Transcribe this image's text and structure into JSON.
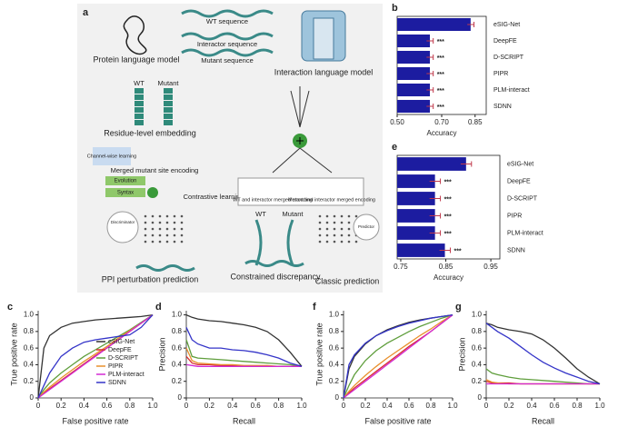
{
  "diagram": {
    "label": "a",
    "wt_sequence": "WT sequence",
    "interactor_sequence": "Interactor sequence",
    "mutant_sequence": "Mutant sequence",
    "protein_model": "Protein language model",
    "interaction_model": "Interaction language model",
    "wt": "WT",
    "mutant": "Mutant",
    "residue_embedding": "Residue-level embedding",
    "channel_learning": "Channel-wise learning",
    "merged_site": "Merged mutant site encoding",
    "evolution": "Evolution",
    "syntax": "Syntax",
    "contrastive": "Contrastive learning",
    "wt_merged": "WT and interactor merged encoding",
    "mutant_merged": "Mutant and interactor merged encoding",
    "discriminator": "Discriminator",
    "predictor": "Predictor",
    "wt_2": "WT",
    "mutant_2": "Mutant",
    "ppi_prediction": "PPI perturbation prediction",
    "constrained": "Constrained discrepancy",
    "classic": "Classic prediction"
  },
  "chart_data": [
    {
      "label": "b",
      "type": "bar",
      "orientation": "horizontal",
      "color": "#1c1ca0",
      "error_color": "#c0394b",
      "categories": [
        "eSIG-Net",
        "DeepFE",
        "D-SCRIPT",
        "PIPR",
        "PLM-interact",
        "SDNN"
      ],
      "values": [
        0.83,
        0.647,
        0.647,
        0.647,
        0.647,
        0.647
      ],
      "errors": [
        0.015,
        0.015,
        0.015,
        0.015,
        0.015,
        0.015
      ],
      "significance": [
        null,
        "***",
        "***",
        "***",
        "***",
        "***"
      ],
      "xlim": [
        0.5,
        0.9
      ],
      "xticks": [
        {
          "value": 0.5,
          "label": "0.50"
        },
        {
          "value": 0.7,
          "label": "0.70"
        },
        0.85
      ],
      "xlabel": "Accuracy"
    },
    {
      "label": "e",
      "type": "bar",
      "orientation": "horizontal",
      "color": "#1c1ca0",
      "error_color": "#c0394b",
      "categories": [
        "eSIG-Net",
        "DeepFE",
        "D-SCRIPT",
        "PIPR",
        "PLM-interact",
        "SDNN"
      ],
      "values": [
        0.895,
        0.826,
        0.826,
        0.826,
        0.826,
        0.848
      ],
      "errors": [
        0.012,
        0.012,
        0.012,
        0.012,
        0.012,
        0.012
      ],
      "significance": [
        null,
        "***",
        "***",
        "***",
        "***",
        "***"
      ],
      "xlim": [
        0.742,
        0.97
      ],
      "xticks": [
        0.75,
        0.85,
        0.95
      ],
      "xlabel": "Accuracy"
    },
    {
      "label": "c",
      "type": "line",
      "legend": "lower-right",
      "x": [
        0,
        0.05,
        0.1,
        0.2,
        0.3,
        0.4,
        0.5,
        0.6,
        0.7,
        0.8,
        0.9,
        1.0
      ],
      "series": [
        {
          "name": "eSIG-Net",
          "color": "#333333",
          "values": [
            0,
            0.6,
            0.75,
            0.85,
            0.9,
            0.92,
            0.94,
            0.95,
            0.96,
            0.97,
            0.98,
            1.0
          ]
        },
        {
          "name": "DeepFE",
          "color": "#d62f2f",
          "values": [
            0,
            0.06,
            0.11,
            0.21,
            0.31,
            0.41,
            0.51,
            0.6,
            0.7,
            0.8,
            0.9,
            1.0
          ]
        },
        {
          "name": "D-SCRIPT",
          "color": "#5f9e3c",
          "values": [
            0,
            0.1,
            0.18,
            0.3,
            0.4,
            0.5,
            0.58,
            0.66,
            0.74,
            0.82,
            0.91,
            1.0
          ]
        },
        {
          "name": "PIPR",
          "color": "#e8902c",
          "values": [
            0,
            0.07,
            0.13,
            0.24,
            0.34,
            0.44,
            0.53,
            0.62,
            0.72,
            0.81,
            0.9,
            1.0
          ]
        },
        {
          "name": "PLM-interact",
          "color": "#d22ad2",
          "values": [
            0,
            0.05,
            0.1,
            0.2,
            0.3,
            0.4,
            0.5,
            0.6,
            0.7,
            0.8,
            0.9,
            1.0
          ]
        },
        {
          "name": "SDNN",
          "color": "#3434c8",
          "values": [
            0,
            0.15,
            0.3,
            0.5,
            0.6,
            0.67,
            0.7,
            0.72,
            0.74,
            0.76,
            0.85,
            1.0
          ]
        }
      ],
      "xlim": [
        0,
        1
      ],
      "ylim": [
        0,
        1.05
      ],
      "xticks": [
        0,
        0.2,
        0.4,
        0.6,
        0.8,
        {
          "value": 1,
          "label": "1.0"
        }
      ],
      "yticks": [
        0,
        0.2,
        0.4,
        0.6,
        0.8,
        {
          "value": 1,
          "label": "1.0"
        }
      ],
      "xlabel": "False positive rate",
      "ylabel": "True positive rate"
    },
    {
      "label": "d",
      "type": "line",
      "x": [
        0,
        0.05,
        0.1,
        0.2,
        0.3,
        0.4,
        0.5,
        0.6,
        0.7,
        0.8,
        0.9,
        1.0
      ],
      "series": [
        {
          "color": "#333333",
          "values": [
            1.0,
            0.97,
            0.95,
            0.93,
            0.92,
            0.9,
            0.88,
            0.85,
            0.8,
            0.7,
            0.55,
            0.38
          ]
        },
        {
          "color": "#d62f2f",
          "values": [
            0.5,
            0.42,
            0.4,
            0.4,
            0.39,
            0.39,
            0.38,
            0.38,
            0.38,
            0.38,
            0.38,
            0.38
          ]
        },
        {
          "color": "#5f9e3c",
          "values": [
            0.7,
            0.5,
            0.48,
            0.47,
            0.46,
            0.45,
            0.44,
            0.43,
            0.42,
            0.41,
            0.4,
            0.38
          ]
        },
        {
          "color": "#e8902c",
          "values": [
            0.6,
            0.45,
            0.42,
            0.41,
            0.4,
            0.4,
            0.39,
            0.39,
            0.39,
            0.38,
            0.38,
            0.38
          ]
        },
        {
          "color": "#d22ad2",
          "values": [
            0.4,
            0.39,
            0.38,
            0.38,
            0.38,
            0.38,
            0.38,
            0.38,
            0.38,
            0.38,
            0.38,
            0.38
          ]
        },
        {
          "color": "#3434c8",
          "values": [
            0.85,
            0.7,
            0.65,
            0.6,
            0.6,
            0.58,
            0.57,
            0.55,
            0.52,
            0.48,
            0.42,
            0.38
          ]
        }
      ],
      "xlim": [
        0,
        1
      ],
      "ylim": [
        0,
        1.05
      ],
      "xticks": [
        0,
        0.2,
        0.4,
        0.6,
        0.8,
        {
          "value": 1,
          "label": "1.0"
        }
      ],
      "yticks": [
        0,
        0.2,
        0.4,
        0.6,
        0.8,
        {
          "value": 1,
          "label": "1.0"
        }
      ],
      "xlabel": "Recall",
      "ylabel": "Precision"
    },
    {
      "label": "f",
      "type": "line",
      "x": [
        0,
        0.05,
        0.1,
        0.2,
        0.3,
        0.4,
        0.5,
        0.6,
        0.7,
        0.8,
        0.9,
        1.0
      ],
      "series": [
        {
          "color": "#333333",
          "values": [
            0,
            0.35,
            0.5,
            0.65,
            0.75,
            0.82,
            0.87,
            0.91,
            0.94,
            0.96,
            0.98,
            1.0
          ]
        },
        {
          "color": "#d62f2f",
          "values": [
            0,
            0.06,
            0.12,
            0.22,
            0.32,
            0.42,
            0.52,
            0.62,
            0.71,
            0.8,
            0.9,
            1.0
          ]
        },
        {
          "color": "#5f9e3c",
          "values": [
            0,
            0.15,
            0.28,
            0.45,
            0.57,
            0.66,
            0.73,
            0.8,
            0.86,
            0.91,
            0.96,
            1.0
          ]
        },
        {
          "color": "#e8902c",
          "values": [
            0,
            0.08,
            0.15,
            0.27,
            0.38,
            0.48,
            0.57,
            0.66,
            0.75,
            0.83,
            0.92,
            1.0
          ]
        },
        {
          "color": "#d22ad2",
          "values": [
            0,
            0.05,
            0.1,
            0.2,
            0.3,
            0.4,
            0.5,
            0.6,
            0.7,
            0.8,
            0.9,
            1.0
          ]
        },
        {
          "color": "#3434c8",
          "values": [
            0,
            0.4,
            0.52,
            0.66,
            0.75,
            0.81,
            0.86,
            0.9,
            0.93,
            0.96,
            0.98,
            1.0
          ]
        }
      ],
      "xlim": [
        0,
        1
      ],
      "ylim": [
        0,
        1.05
      ],
      "xticks": [
        0,
        0.2,
        0.4,
        0.6,
        0.8,
        {
          "value": 1,
          "label": "1.0"
        }
      ],
      "yticks": [
        0,
        0.2,
        0.4,
        0.6,
        0.8,
        {
          "value": 1,
          "label": "1.0"
        }
      ],
      "xlabel": "False positive rate",
      "ylabel": "True positive rate"
    },
    {
      "label": "g",
      "type": "line",
      "x": [
        0,
        0.05,
        0.1,
        0.2,
        0.3,
        0.4,
        0.5,
        0.6,
        0.7,
        0.8,
        0.9,
        1.0
      ],
      "series": [
        {
          "color": "#333333",
          "values": [
            0.9,
            0.88,
            0.85,
            0.82,
            0.8,
            0.77,
            0.7,
            0.6,
            0.48,
            0.35,
            0.25,
            0.17
          ]
        },
        {
          "color": "#d62f2f",
          "values": [
            0.2,
            0.18,
            0.18,
            0.18,
            0.17,
            0.17,
            0.17,
            0.17,
            0.17,
            0.17,
            0.17,
            0.17
          ]
        },
        {
          "color": "#5f9e3c",
          "values": [
            0.35,
            0.3,
            0.28,
            0.25,
            0.23,
            0.22,
            0.21,
            0.2,
            0.19,
            0.18,
            0.17,
            0.17
          ]
        },
        {
          "color": "#e8902c",
          "values": [
            0.22,
            0.19,
            0.18,
            0.17,
            0.17,
            0.17,
            0.17,
            0.17,
            0.17,
            0.17,
            0.17,
            0.17
          ]
        },
        {
          "color": "#d22ad2",
          "values": [
            0.17,
            0.17,
            0.17,
            0.17,
            0.17,
            0.17,
            0.17,
            0.17,
            0.17,
            0.17,
            0.17,
            0.17
          ]
        },
        {
          "color": "#3434c8",
          "values": [
            0.9,
            0.85,
            0.8,
            0.72,
            0.62,
            0.52,
            0.43,
            0.36,
            0.3,
            0.25,
            0.2,
            0.17
          ]
        }
      ],
      "xlim": [
        0,
        1
      ],
      "ylim": [
        0,
        1.05
      ],
      "xticks": [
        0,
        0.2,
        0.4,
        0.6,
        0.8,
        {
          "value": 1,
          "label": "1.0"
        }
      ],
      "yticks": [
        0,
        0.2,
        0.4,
        0.6,
        0.8,
        {
          "value": 1,
          "label": "1.0"
        }
      ],
      "xlabel": "Recall",
      "ylabel": "Precision"
    }
  ]
}
